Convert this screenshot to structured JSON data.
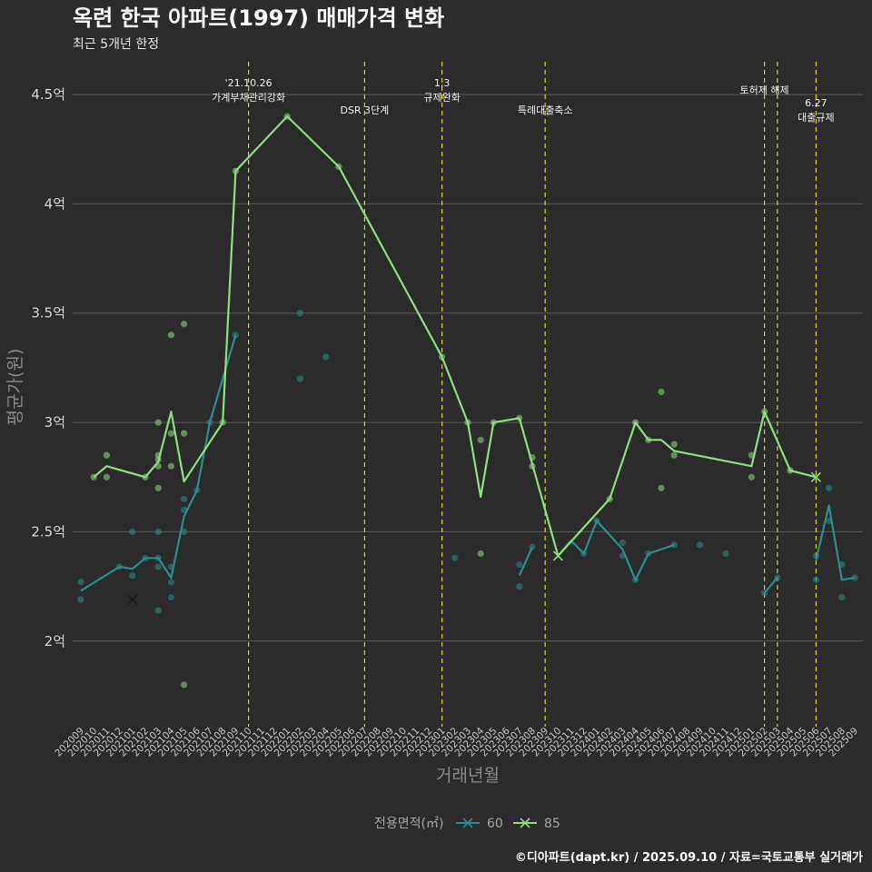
{
  "chart_data": {
    "type": "line",
    "title": "옥련 한국 아파트(1997) 매매가격 변화",
    "subtitle": "최근 5개년 한정",
    "xlabel": "거래년월",
    "ylabel": "평균가(원)",
    "ylim": [
      1.65,
      4.6
    ],
    "y_ticks": [
      {
        "value": 2.0,
        "label": "2억"
      },
      {
        "value": 2.5,
        "label": "2.5억"
      },
      {
        "value": 3.0,
        "label": "3억"
      },
      {
        "value": 3.5,
        "label": "3.5억"
      },
      {
        "value": 4.0,
        "label": "4억"
      },
      {
        "value": 4.5,
        "label": "4.5억"
      }
    ],
    "x_ticks": [
      "202009",
      "202010",
      "202011",
      "202012",
      "202101",
      "202102",
      "202103",
      "202104",
      "202105",
      "202106",
      "202107",
      "202108",
      "202109",
      "202110",
      "202111",
      "202112",
      "202201",
      "202202",
      "202203",
      "202204",
      "202205",
      "202206",
      "202207",
      "202208",
      "202209",
      "202210",
      "202211",
      "202212",
      "202301",
      "202302",
      "202303",
      "202304",
      "202305",
      "202306",
      "202307",
      "202308",
      "202309",
      "202310",
      "202311",
      "202312",
      "202401",
      "202402",
      "202403",
      "202404",
      "202405",
      "202406",
      "202407",
      "202408",
      "202409",
      "202410",
      "202411",
      "202412",
      "202501",
      "202502",
      "202503",
      "202504",
      "202505",
      "202506",
      "202507",
      "202508",
      "202509"
    ],
    "annotations": [
      {
        "x": "202110",
        "lines": [
          "'21.10.26",
          "가계부채관리강화"
        ]
      },
      {
        "x": "202207",
        "lines": [
          "DSR 3단계"
        ]
      },
      {
        "x": "202301",
        "lines": [
          "1.3",
          "규제완화"
        ]
      },
      {
        "x": "202309",
        "lines": [
          "특례대출축소"
        ]
      },
      {
        "x": "202502",
        "lines": [
          "토허제 해제"
        ]
      },
      {
        "x": "202503",
        "lines": []
      },
      {
        "x": "202506",
        "lines": [
          "6.27",
          "대출규제"
        ]
      }
    ],
    "legend": {
      "title": "전용면적(㎡)",
      "position": "bottom",
      "items": [
        {
          "name": "60",
          "color": "#2a8f8f"
        },
        {
          "name": "85",
          "color": "#8ee07f"
        }
      ]
    },
    "series": [
      {
        "name": "60",
        "color": "#2a8f8f",
        "line_segments": [
          [
            [
              "202009",
              2.23
            ],
            [
              "202012",
              2.34
            ],
            [
              "202101",
              2.33
            ],
            [
              "202102",
              2.38
            ],
            [
              "202103",
              2.38
            ],
            [
              "202104",
              2.29
            ],
            [
              "202105",
              2.57
            ],
            [
              "202106",
              2.69
            ],
            [
              "202107",
              3.0
            ],
            [
              "202109",
              3.4
            ]
          ],
          [
            [
              "202307",
              2.3
            ],
            [
              "202308",
              2.43
            ]
          ],
          [
            [
              "202310",
              2.39
            ],
            [
              "202311",
              2.46
            ],
            [
              "202312",
              2.4
            ],
            [
              "202401",
              2.55
            ],
            [
              "202403",
              2.42
            ],
            [
              "202404",
              2.28
            ],
            [
              "202405",
              2.4
            ],
            [
              "202407",
              2.44
            ]
          ],
          [
            [
              "202502",
              2.22
            ],
            [
              "202503",
              2.29
            ]
          ],
          [
            [
              "202506",
              2.37
            ],
            [
              "202507",
              2.62
            ],
            [
              "202508",
              2.28
            ],
            [
              "202509",
              2.29
            ]
          ]
        ],
        "points": [
          [
            "202009",
            2.27
          ],
          [
            "202009",
            2.19
          ],
          [
            "202012",
            2.34
          ],
          [
            "202101",
            2.5
          ],
          [
            "202101",
            2.3
          ],
          [
            "202102",
            2.38
          ],
          [
            "202103",
            2.5
          ],
          [
            "202103",
            2.38
          ],
          [
            "202103",
            2.34
          ],
          [
            "202103",
            2.14
          ],
          [
            "202104",
            2.34
          ],
          [
            "202104",
            2.27
          ],
          [
            "202104",
            2.2
          ],
          [
            "202105",
            2.65
          ],
          [
            "202105",
            2.6
          ],
          [
            "202105",
            2.5
          ],
          [
            "202106",
            2.69
          ],
          [
            "202107",
            3.0
          ],
          [
            "202109",
            3.4
          ],
          [
            "202202",
            3.5
          ],
          [
            "202202",
            3.2
          ],
          [
            "202204",
            3.3
          ],
          [
            "202302",
            2.38
          ],
          [
            "202307",
            2.35
          ],
          [
            "202307",
            2.25
          ],
          [
            "202308",
            2.43
          ],
          [
            "202312",
            2.4
          ],
          [
            "202401",
            2.55
          ],
          [
            "202403",
            2.45
          ],
          [
            "202403",
            2.39
          ],
          [
            "202404",
            2.28
          ],
          [
            "202405",
            2.4
          ],
          [
            "202407",
            2.44
          ],
          [
            "202409",
            2.44
          ],
          [
            "202411",
            2.4
          ],
          [
            "202502",
            2.22
          ],
          [
            "202503",
            2.29
          ],
          [
            "202506",
            2.28
          ],
          [
            "202506",
            2.39
          ],
          [
            "202507",
            2.7
          ],
          [
            "202507",
            2.55
          ],
          [
            "202508",
            2.35
          ],
          [
            "202508",
            2.2
          ],
          [
            "202509",
            2.29
          ]
        ],
        "markers": [
          [
            "202101",
            2.19
          ]
        ]
      },
      {
        "name": "85",
        "color": "#8ee07f",
        "line_segments": [
          [
            [
              "202010",
              2.75
            ],
            [
              "202011",
              2.8
            ],
            [
              "202102",
              2.75
            ],
            [
              "202103",
              2.82
            ],
            [
              "202104",
              3.05
            ],
            [
              "202105",
              2.73
            ],
            [
              "202108",
              3.0
            ],
            [
              "202109",
              4.15
            ],
            [
              "202201",
              4.4
            ],
            [
              "202205",
              4.17
            ],
            [
              "202301",
              3.3
            ],
            [
              "202303",
              3.0
            ],
            [
              "202304",
              2.66
            ],
            [
              "202305",
              3.0
            ],
            [
              "202307",
              3.02
            ],
            [
              "202310",
              2.39
            ],
            [
              "202402",
              2.65
            ],
            [
              "202404",
              3.0
            ],
            [
              "202405",
              2.92
            ],
            [
              "202406",
              2.92
            ],
            [
              "202407",
              2.87
            ],
            [
              "202501",
              2.8
            ],
            [
              "202502",
              3.05
            ],
            [
              "202504",
              2.78
            ],
            [
              "202506",
              2.75
            ]
          ]
        ],
        "points": [
          [
            "202010",
            2.75
          ],
          [
            "202011",
            2.85
          ],
          [
            "202011",
            2.75
          ],
          [
            "202102",
            2.75
          ],
          [
            "202103",
            3.0
          ],
          [
            "202103",
            2.85
          ],
          [
            "202103",
            2.83
          ],
          [
            "202103",
            2.8
          ],
          [
            "202103",
            2.7
          ],
          [
            "202104",
            3.4
          ],
          [
            "202104",
            2.95
          ],
          [
            "202104",
            2.8
          ],
          [
            "202105",
            3.45
          ],
          [
            "202105",
            2.95
          ],
          [
            "202105",
            1.8
          ],
          [
            "202108",
            3.0
          ],
          [
            "202109",
            4.15
          ],
          [
            "202201",
            4.4
          ],
          [
            "202205",
            4.17
          ],
          [
            "202301",
            3.3
          ],
          [
            "202303",
            3.0
          ],
          [
            "202304",
            2.92
          ],
          [
            "202304",
            2.4
          ],
          [
            "202305",
            3.0
          ],
          [
            "202307",
            3.02
          ],
          [
            "202308",
            2.84
          ],
          [
            "202308",
            2.8
          ],
          [
            "202402",
            2.65
          ],
          [
            "202404",
            3.0
          ],
          [
            "202405",
            2.92
          ],
          [
            "202406",
            3.14
          ],
          [
            "202406",
            2.7
          ],
          [
            "202407",
            2.9
          ],
          [
            "202407",
            2.85
          ],
          [
            "202501",
            2.85
          ],
          [
            "202501",
            2.75
          ],
          [
            "202502",
            3.05
          ],
          [
            "202504",
            2.78
          ]
        ],
        "markers": [
          [
            "202310",
            2.39
          ],
          [
            "202506",
            2.75
          ]
        ]
      }
    ],
    "caption": "©디아파트(dapt.kr) / 2025.09.10 / 자료=국토교통부 실거래가",
    "grid": true
  }
}
